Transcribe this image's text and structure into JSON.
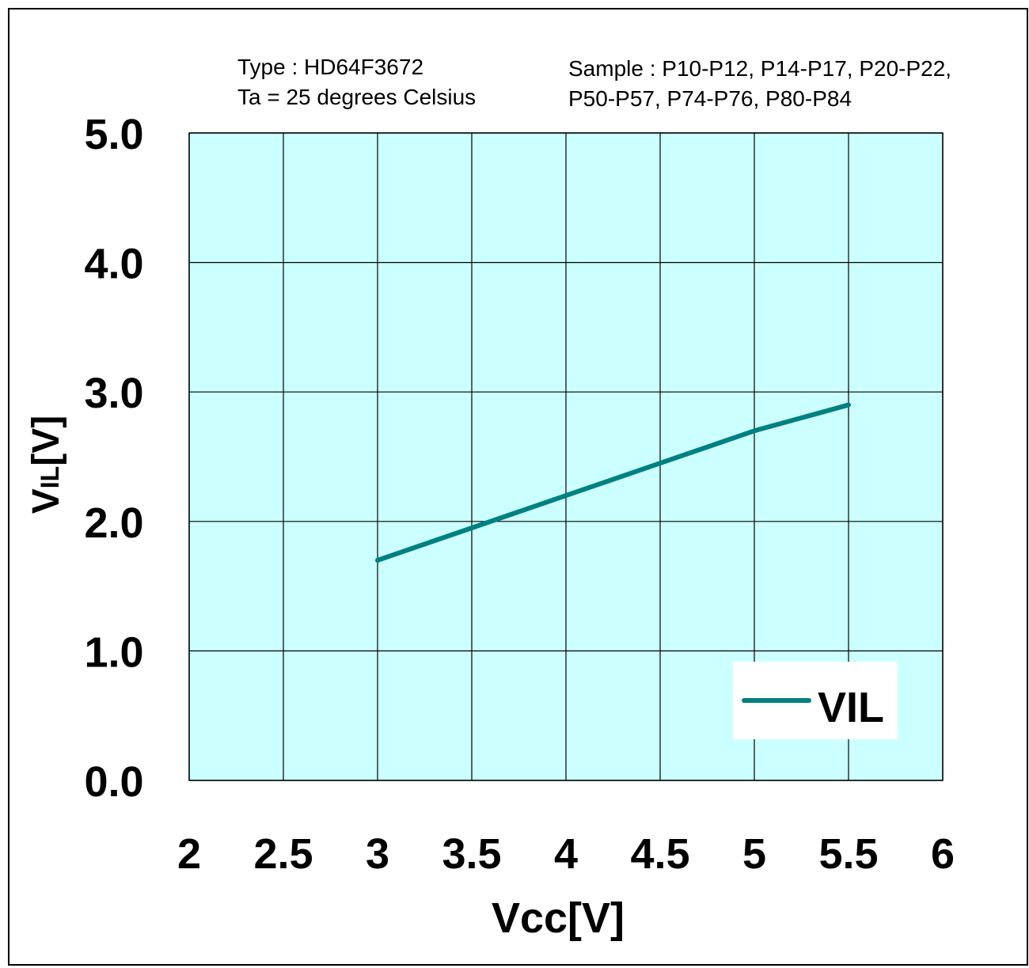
{
  "header": {
    "type_line": "Type : HD64F3672",
    "temp_line": "Ta = 25 degrees Celsius",
    "sample_line1": "Sample : P10-P12, P14-P17, P20-P22,",
    "sample_line2": "P50-P57, P74-P76, P80-P84"
  },
  "colors": {
    "plot_background": "#ccffff",
    "series_line": "#008080",
    "grid": "#000000"
  },
  "chart_data": {
    "type": "line",
    "xlabel": "Vcc[V]",
    "ylabel_main": "V",
    "ylabel_sub": "IL",
    "ylabel_suffix": "[V]",
    "xlim": [
      2,
      6
    ],
    "ylim": [
      0,
      5
    ],
    "x_ticks": [
      "2",
      "2.5",
      "3",
      "3.5",
      "4",
      "4.5",
      "5",
      "5.5",
      "6"
    ],
    "y_ticks": [
      "0.0",
      "1.0",
      "2.0",
      "3.0",
      "4.0",
      "5.0"
    ],
    "grid": true,
    "legend": "bottom-right",
    "series": [
      {
        "name": "VIL",
        "x": [
          3.0,
          3.5,
          4.0,
          4.5,
          5.0,
          5.5
        ],
        "y": [
          1.7,
          1.95,
          2.2,
          2.45,
          2.7,
          2.9
        ]
      }
    ]
  }
}
